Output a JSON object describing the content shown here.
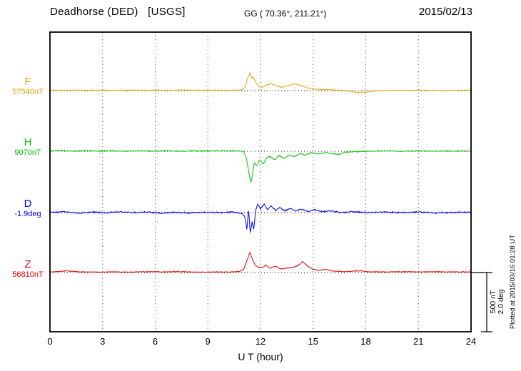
{
  "header": {
    "station": "Deadhorse (DED)   [USGS]",
    "coords": "GG ( 70.36°, 211.21°)",
    "date": "2015/02/13"
  },
  "axis": {
    "xlabel": "U T (hour)",
    "xmin": 0,
    "xmax": 24,
    "ticks": [
      0,
      3,
      6,
      9,
      12,
      15,
      18,
      21,
      24
    ]
  },
  "scalebar": {
    "label_nt": "500 nT",
    "label_deg": "2.0 deg",
    "nt": 500,
    "deg": 2.0
  },
  "footer_note": "Plotted at 2015/03/16 01:28 UT",
  "chart_data": {
    "type": "line",
    "title": "Deadhorse (DED) [USGS] magnetogram, 2015/02/13",
    "xlabel": "U T (hour)",
    "x_range": [
      0,
      24
    ],
    "grid": "dashed vertical every 3 hours",
    "legend_position": "left margin",
    "series": [
      {
        "name": "F",
        "baseline_label": "57540nT",
        "unit": "nT",
        "color": "#E8A000",
        "noise": 3,
        "points": [
          [
            0,
            4
          ],
          [
            0.7,
            2
          ],
          [
            1.5,
            5
          ],
          [
            2.3,
            3
          ],
          [
            3,
            4
          ],
          [
            3.8,
            2
          ],
          [
            4.5,
            5
          ],
          [
            5.3,
            3
          ],
          [
            6,
            5
          ],
          [
            6.8,
            3
          ],
          [
            7.5,
            6
          ],
          [
            8.2,
            3
          ],
          [
            9,
            2
          ],
          [
            9.7,
            4
          ],
          [
            10.4,
            3
          ],
          [
            10.9,
            6
          ],
          [
            11.1,
            25
          ],
          [
            11.25,
            95
          ],
          [
            11.4,
            150
          ],
          [
            11.5,
            105
          ],
          [
            11.6,
            118
          ],
          [
            11.75,
            62
          ],
          [
            11.9,
            35
          ],
          [
            12.1,
            28
          ],
          [
            12.35,
            48
          ],
          [
            12.6,
            58
          ],
          [
            12.9,
            38
          ],
          [
            13.2,
            28
          ],
          [
            13.6,
            44
          ],
          [
            14,
            58
          ],
          [
            14.3,
            42
          ],
          [
            14.7,
            22
          ],
          [
            15.2,
            12
          ],
          [
            15.8,
            8
          ],
          [
            16.5,
            4
          ],
          [
            17.2,
            -8
          ],
          [
            17.6,
            -18
          ],
          [
            18,
            -12
          ],
          [
            18.5,
            -4
          ],
          [
            19.2,
            2
          ],
          [
            20,
            1
          ],
          [
            21,
            3
          ],
          [
            22,
            2
          ],
          [
            23,
            3
          ],
          [
            24,
            3
          ]
        ]
      },
      {
        "name": "H",
        "baseline_label": "9070nT",
        "unit": "nT",
        "color": "#00C000",
        "noise": 5,
        "points": [
          [
            0,
            2
          ],
          [
            0.6,
            6
          ],
          [
            1.3,
            0
          ],
          [
            2,
            4
          ],
          [
            2.8,
            1
          ],
          [
            3.5,
            5
          ],
          [
            4.2,
            0
          ],
          [
            5,
            3
          ],
          [
            5.8,
            1
          ],
          [
            6.5,
            4
          ],
          [
            7.2,
            0
          ],
          [
            8,
            3
          ],
          [
            8.8,
            1
          ],
          [
            9.5,
            4
          ],
          [
            10.2,
            2
          ],
          [
            10.8,
            4
          ],
          [
            11.05,
            -5
          ],
          [
            11.2,
            -60
          ],
          [
            11.35,
            -190
          ],
          [
            11.45,
            -268
          ],
          [
            11.55,
            -195
          ],
          [
            11.65,
            -95
          ],
          [
            11.8,
            -125
          ],
          [
            11.95,
            -70
          ],
          [
            12.15,
            -108
          ],
          [
            12.35,
            -55
          ],
          [
            12.55,
            -42
          ],
          [
            12.8,
            -72
          ],
          [
            13.05,
            -35
          ],
          [
            13.35,
            -60
          ],
          [
            13.65,
            -32
          ],
          [
            13.95,
            -45
          ],
          [
            14.25,
            -18
          ],
          [
            14.55,
            -32
          ],
          [
            14.9,
            -12
          ],
          [
            15.3,
            -22
          ],
          [
            15.7,
            -10
          ],
          [
            16.1,
            -20
          ],
          [
            16.5,
            -26
          ],
          [
            16.9,
            -8
          ],
          [
            17.4,
            -4
          ],
          [
            18,
            -2
          ],
          [
            19,
            2
          ],
          [
            20,
            0
          ],
          [
            21,
            3
          ],
          [
            22,
            1
          ],
          [
            23,
            2
          ],
          [
            24,
            1
          ]
        ]
      },
      {
        "name": "D",
        "baseline_label": "-1.9deg",
        "unit": "deg",
        "color": "#0000EE",
        "noise": 0.028,
        "points": [
          [
            0,
            0
          ],
          [
            0.8,
            0.03
          ],
          [
            1.6,
            -0.02
          ],
          [
            2.4,
            0.02
          ],
          [
            3.2,
            -0.01
          ],
          [
            4,
            0.03
          ],
          [
            4.8,
            0
          ],
          [
            5.6,
            0.02
          ],
          [
            6.4,
            -0.02
          ],
          [
            7.2,
            0.01
          ],
          [
            8,
            -0.01
          ],
          [
            8.8,
            0.02
          ],
          [
            9.6,
            0
          ],
          [
            10.4,
            0.02
          ],
          [
            10.9,
            -0.02
          ],
          [
            11.1,
            -0.12
          ],
          [
            11.22,
            -0.55
          ],
          [
            11.32,
            0.12
          ],
          [
            11.42,
            -0.72
          ],
          [
            11.52,
            -0.3
          ],
          [
            11.62,
            -0.58
          ],
          [
            11.72,
            0.08
          ],
          [
            11.85,
            0.28
          ],
          [
            12,
            0.12
          ],
          [
            12.2,
            0.3
          ],
          [
            12.4,
            0.1
          ],
          [
            12.6,
            0.22
          ],
          [
            12.85,
            0.08
          ],
          [
            13.1,
            0.18
          ],
          [
            13.4,
            0.06
          ],
          [
            13.7,
            0.14
          ],
          [
            14,
            0.05
          ],
          [
            14.3,
            0.12
          ],
          [
            14.7,
            0.04
          ],
          [
            15.1,
            0.1
          ],
          [
            15.5,
            0.03
          ],
          [
            16,
            0.06
          ],
          [
            16.6,
            0.01
          ],
          [
            17.3,
            0.03
          ],
          [
            18,
            0
          ],
          [
            19,
            0.02
          ],
          [
            20,
            0
          ],
          [
            21,
            0.02
          ],
          [
            22,
            -0.01
          ],
          [
            23,
            0.01
          ],
          [
            24,
            0.01
          ]
        ]
      },
      {
        "name": "Z",
        "baseline_label": "56810nT",
        "unit": "nT",
        "color": "#E00000",
        "noise": 4,
        "points": [
          [
            0,
            4
          ],
          [
            0.5,
            9
          ],
          [
            1,
            14
          ],
          [
            1.5,
            8
          ],
          [
            2,
            5
          ],
          [
            2.8,
            3
          ],
          [
            3.5,
            6
          ],
          [
            4.2,
            4
          ],
          [
            5,
            5
          ],
          [
            5.8,
            7
          ],
          [
            6.5,
            5
          ],
          [
            7.2,
            8
          ],
          [
            8,
            5
          ],
          [
            8.8,
            3
          ],
          [
            9.5,
            5
          ],
          [
            10.2,
            4
          ],
          [
            10.8,
            9
          ],
          [
            11.05,
            30
          ],
          [
            11.25,
            110
          ],
          [
            11.4,
            172
          ],
          [
            11.55,
            105
          ],
          [
            11.7,
            62
          ],
          [
            11.9,
            45
          ],
          [
            12.1,
            40
          ],
          [
            12.3,
            64
          ],
          [
            12.55,
            36
          ],
          [
            12.85,
            54
          ],
          [
            13.15,
            30
          ],
          [
            13.5,
            38
          ],
          [
            13.85,
            44
          ],
          [
            14.15,
            60
          ],
          [
            14.4,
            92
          ],
          [
            14.65,
            58
          ],
          [
            14.95,
            30
          ],
          [
            15.3,
            20
          ],
          [
            15.7,
            26
          ],
          [
            16.2,
            12
          ],
          [
            16.7,
            8
          ],
          [
            17.2,
            10
          ],
          [
            17.7,
            14
          ],
          [
            18.2,
            6
          ],
          [
            19,
            5
          ],
          [
            20,
            7
          ],
          [
            21,
            5
          ],
          [
            22,
            6
          ],
          [
            23,
            5
          ],
          [
            24,
            5
          ]
        ]
      }
    ]
  }
}
